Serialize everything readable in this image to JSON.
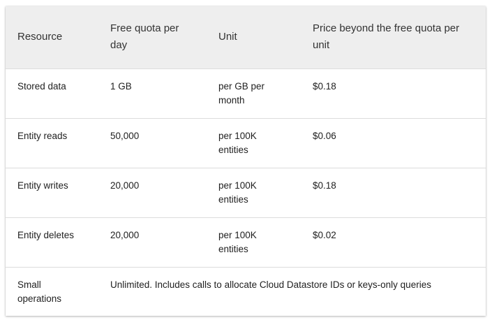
{
  "table": {
    "headers": [
      "Resource",
      "Free quota per day",
      "Unit",
      "Price beyond the free quota per unit"
    ],
    "rows": [
      [
        "Stored data",
        "1 GB",
        "per GB per month",
        "$0.18"
      ],
      [
        "Entity reads",
        "50,000",
        "per 100K entities",
        "$0.06"
      ],
      [
        "Entity writes",
        "20,000",
        "per 100K entities",
        "$0.18"
      ],
      [
        "Entity deletes",
        "20,000",
        "per 100K entities",
        "$0.02"
      ]
    ],
    "last_row": {
      "resource": "Small operations",
      "note": "Unlimited. Includes calls to allocate Cloud Datastore IDs or keys-only queries"
    }
  }
}
